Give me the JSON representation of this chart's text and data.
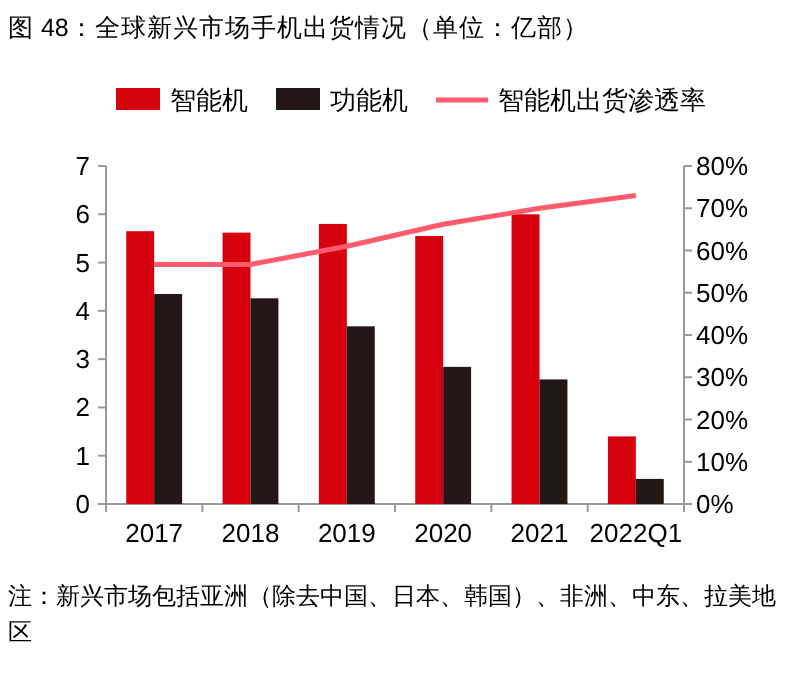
{
  "chart_data": {
    "type": "bar",
    "title": "图 48：全球新兴市场手机出货情况（单位：亿部）",
    "categories": [
      "2017",
      "2018",
      "2019",
      "2020",
      "2021",
      "2022Q1"
    ],
    "series": [
      {
        "name": "智能机",
        "color": "#d7000f",
        "values": [
          5.65,
          5.62,
          5.8,
          5.55,
          6.0,
          1.4
        ]
      },
      {
        "name": "功能机",
        "color": "#231815",
        "values": [
          4.35,
          4.26,
          3.68,
          2.84,
          2.58,
          0.52
        ]
      },
      {
        "name": "智能机出货渗透率",
        "type": "line",
        "axis": "y2",
        "color": "#ff5a6e",
        "values": [
          56.7,
          56.7,
          61,
          66.2,
          70,
          73
        ]
      }
    ],
    "ylim": [
      0,
      7
    ],
    "yticks": [
      0,
      1,
      2,
      3,
      4,
      5,
      6,
      7
    ],
    "y2lim": [
      0,
      80
    ],
    "y2ticks": [
      {
        "value": 0,
        "label": "0%"
      },
      {
        "value": 10,
        "label": "10%"
      },
      {
        "value": 20,
        "label": "20%"
      },
      {
        "value": 30,
        "label": "30%"
      },
      {
        "value": 40,
        "label": "40%"
      },
      {
        "value": 50,
        "label": "50%"
      },
      {
        "value": 60,
        "label": "60%"
      },
      {
        "value": 70,
        "label": "70%"
      },
      {
        "value": 80,
        "label": "80%"
      }
    ],
    "legend": "top",
    "grid": false,
    "marker": "none",
    "line_style": "solid",
    "annotations": [
      "注：新兴市场包括亚洲（除去中国、日本、韩国）、非洲、中东、拉美地区"
    ]
  }
}
